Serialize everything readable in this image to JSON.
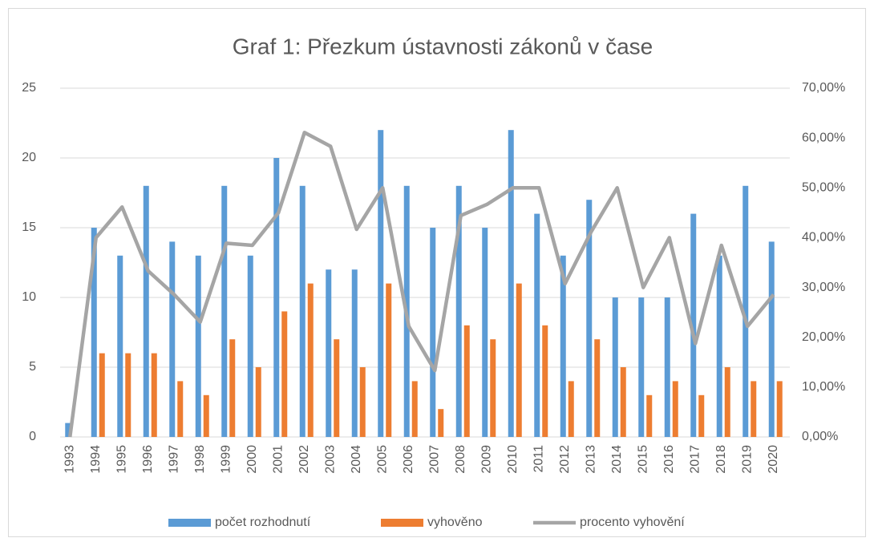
{
  "chart_data": {
    "type": "bar_line",
    "title": "Graf 1: Přezkum ústavnosti zákonů v čase",
    "categories": [
      "1993",
      "1994",
      "1995",
      "1996",
      "1997",
      "1998",
      "1999",
      "2000",
      "2001",
      "2002",
      "2003",
      "2004",
      "2005",
      "2006",
      "2007",
      "2008",
      "2009",
      "2010",
      "2011",
      "2012",
      "2013",
      "2014",
      "2015",
      "2016",
      "2017",
      "2018",
      "2019",
      "2020"
    ],
    "series": [
      {
        "name": "počet rozhodnutí",
        "type": "bar",
        "color": "#5b9bd5",
        "values": [
          1,
          15,
          13,
          18,
          14,
          13,
          18,
          13,
          20,
          18,
          12,
          12,
          22,
          18,
          15,
          18,
          15,
          22,
          16,
          13,
          17,
          10,
          10,
          10,
          16,
          13,
          18,
          14
        ]
      },
      {
        "name": "vyhověno",
        "type": "bar",
        "color": "#ed7d31",
        "values": [
          0,
          6,
          6,
          6,
          4,
          3,
          7,
          5,
          9,
          11,
          7,
          5,
          11,
          4,
          2,
          8,
          7,
          11,
          8,
          4,
          7,
          5,
          3,
          4,
          3,
          5,
          4,
          4
        ]
      },
      {
        "name": "procento vyhovění",
        "type": "line",
        "axis": "y2",
        "color": "#a5a5a5",
        "values": [
          0,
          40,
          46.15,
          33.33,
          28.57,
          23.08,
          38.89,
          38.46,
          45,
          61.11,
          58.33,
          41.67,
          50,
          22.22,
          13.33,
          44.44,
          46.67,
          50,
          50,
          30.77,
          41.18,
          50,
          30,
          40,
          18.75,
          38.46,
          22.22,
          28.57
        ]
      }
    ],
    "ylim": [
      0,
      25
    ],
    "yticks": [
      0,
      5,
      10,
      15,
      20,
      25
    ],
    "y2lim": [
      0,
      70
    ],
    "y2ticks": [
      {
        "value": 0,
        "label": "0,00%"
      },
      {
        "value": 10,
        "label": "10,00%"
      },
      {
        "value": 20,
        "label": "20,00%"
      },
      {
        "value": 30,
        "label": "30,00%"
      },
      {
        "value": 40,
        "label": "40,00%"
      },
      {
        "value": 50,
        "label": "50,00%"
      },
      {
        "value": 60,
        "label": "60,00%"
      },
      {
        "value": 70,
        "label": "70,00%"
      }
    ],
    "grid": true,
    "legend": "bottom"
  }
}
